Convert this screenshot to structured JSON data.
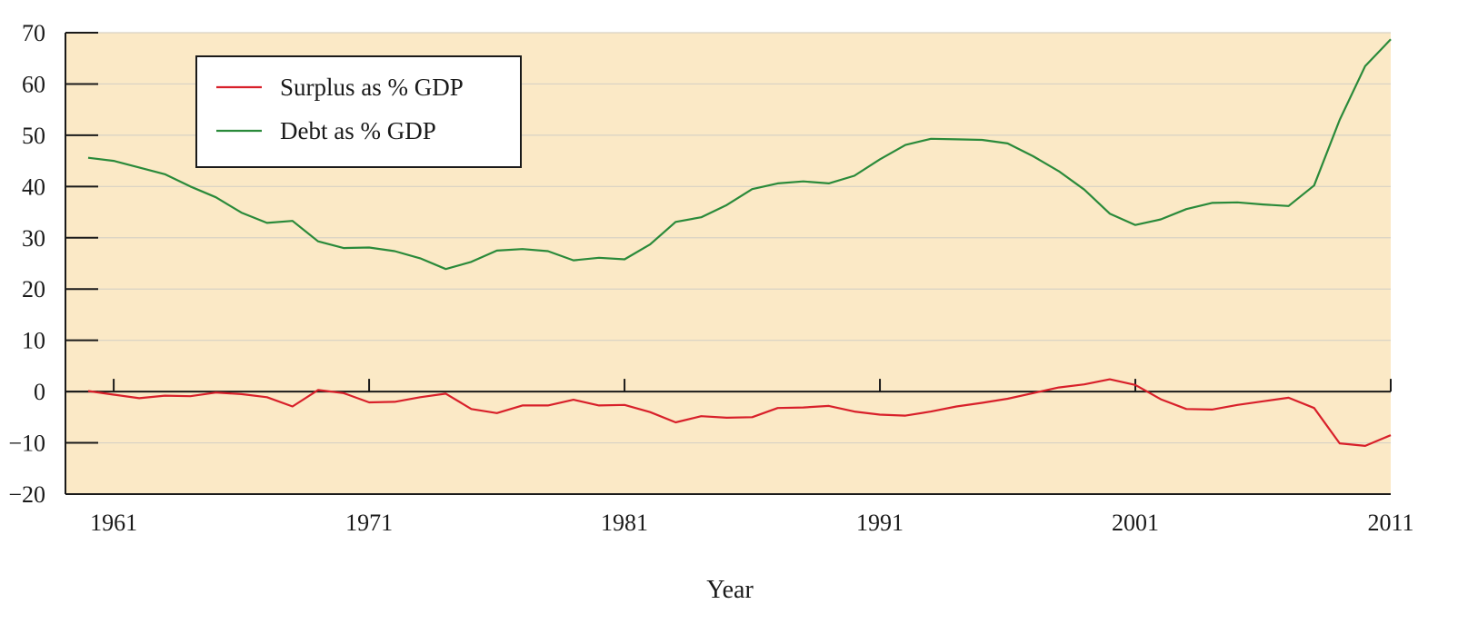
{
  "chart_data": {
    "type": "line",
    "title": "",
    "xlabel": "Year",
    "ylabel": "",
    "xlim": [
      1960,
      2011
    ],
    "ylim": [
      -20,
      70
    ],
    "yticks": [
      -20,
      -10,
      0,
      10,
      20,
      30,
      40,
      50,
      60,
      70
    ],
    "xticks": [
      1961,
      1971,
      1981,
      1991,
      2001,
      2011
    ],
    "grid": true,
    "legend_position": "top-left",
    "background_color": "#fbe9c6",
    "series": [
      {
        "name": "Surplus as % GDP",
        "color": "#d8202a",
        "x": [
          1960,
          1961,
          1962,
          1963,
          1964,
          1965,
          1966,
          1967,
          1968,
          1969,
          1970,
          1971,
          1972,
          1973,
          1974,
          1975,
          1976,
          1977,
          1978,
          1979,
          1980,
          1981,
          1982,
          1983,
          1984,
          1985,
          1986,
          1987,
          1988,
          1989,
          1990,
          1991,
          1992,
          1993,
          1994,
          1995,
          1996,
          1997,
          1998,
          1999,
          2000,
          2001,
          2002,
          2003,
          2004,
          2005,
          2006,
          2007,
          2008,
          2009,
          2010,
          2011
        ],
        "values": [
          0.1,
          -0.6,
          -1.3,
          -0.8,
          -0.9,
          -0.2,
          -0.5,
          -1.1,
          -2.9,
          0.3,
          -0.3,
          -2.1,
          -2.0,
          -1.1,
          -0.4,
          -3.4,
          -4.2,
          -2.7,
          -2.7,
          -1.6,
          -2.7,
          -2.6,
          -4.0,
          -6.0,
          -4.8,
          -5.1,
          -5.0,
          -3.2,
          -3.1,
          -2.8,
          -3.9,
          -4.5,
          -4.7,
          -3.9,
          -2.9,
          -2.2,
          -1.4,
          -0.3,
          0.8,
          1.4,
          2.4,
          1.3,
          -1.5,
          -3.4,
          -3.5,
          -2.6,
          -1.9,
          -1.2,
          -3.2,
          -10.1,
          -10.6,
          -8.5
        ]
      },
      {
        "name": "Debt as % GDP",
        "color": "#2a8a3a",
        "x": [
          1960,
          1961,
          1962,
          1963,
          1964,
          1965,
          1966,
          1967,
          1968,
          1969,
          1970,
          1971,
          1972,
          1973,
          1974,
          1975,
          1976,
          1977,
          1978,
          1979,
          1980,
          1981,
          1982,
          1983,
          1984,
          1985,
          1986,
          1987,
          1988,
          1989,
          1990,
          1991,
          1992,
          1993,
          1994,
          1995,
          1996,
          1997,
          1998,
          1999,
          2000,
          2001,
          2002,
          2003,
          2004,
          2005,
          2006,
          2007,
          2008,
          2009,
          2010,
          2011
        ],
        "values": [
          45.6,
          45.0,
          43.7,
          42.4,
          40.0,
          37.9,
          34.9,
          32.9,
          33.3,
          29.3,
          28.0,
          28.1,
          27.4,
          26.0,
          23.9,
          25.3,
          27.5,
          27.8,
          27.4,
          25.6,
          26.1,
          25.8,
          28.7,
          33.1,
          34.0,
          36.4,
          39.5,
          40.6,
          41.0,
          40.6,
          42.1,
          45.3,
          48.1,
          49.3,
          49.2,
          49.1,
          48.4,
          45.9,
          43.0,
          39.4,
          34.7,
          32.5,
          33.6,
          35.6,
          36.8,
          36.9,
          36.5,
          36.2,
          40.2,
          53.0,
          63.5,
          68.7
        ]
      }
    ]
  }
}
